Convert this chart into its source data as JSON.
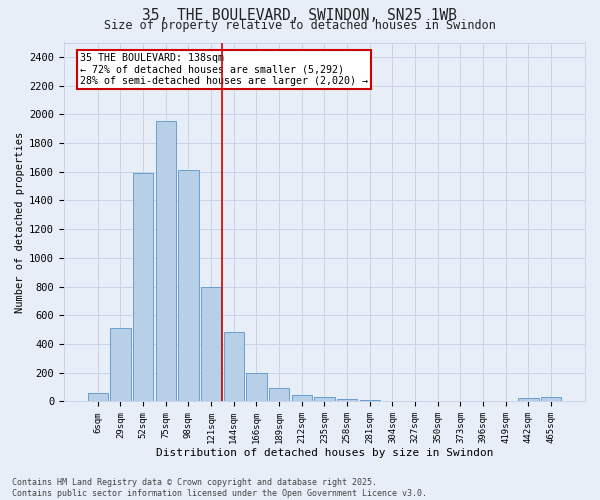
{
  "title1": "35, THE BOULEVARD, SWINDON, SN25 1WB",
  "title2": "Size of property relative to detached houses in Swindon",
  "xlabel": "Distribution of detached houses by size in Swindon",
  "ylabel": "Number of detached properties",
  "categories": [
    "6sqm",
    "29sqm",
    "52sqm",
    "75sqm",
    "98sqm",
    "121sqm",
    "144sqm",
    "166sqm",
    "189sqm",
    "212sqm",
    "235sqm",
    "258sqm",
    "281sqm",
    "304sqm",
    "327sqm",
    "350sqm",
    "373sqm",
    "396sqm",
    "419sqm",
    "442sqm",
    "465sqm"
  ],
  "values": [
    55,
    510,
    1590,
    1950,
    1610,
    800,
    480,
    200,
    95,
    45,
    30,
    15,
    10,
    0,
    0,
    0,
    0,
    0,
    0,
    20,
    30
  ],
  "bar_color": "#b8cfe8",
  "bar_edge_color": "#6a9fd0",
  "vline_x": 5.5,
  "annotation_text": "35 THE BOULEVARD: 138sqm\n← 72% of detached houses are smaller (5,292)\n28% of semi-detached houses are larger (2,020) →",
  "box_color": "#ffffff",
  "box_edge_color": "#cc0000",
  "vline_color": "#cc0000",
  "grid_color": "#c8d4e8",
  "bg_color": "#e8eef8",
  "ylim": [
    0,
    2500
  ],
  "yticks": [
    0,
    200,
    400,
    600,
    800,
    1000,
    1200,
    1400,
    1600,
    1800,
    2000,
    2200,
    2400
  ],
  "footer": "Contains HM Land Registry data © Crown copyright and database right 2025.\nContains public sector information licensed under the Open Government Licence v3.0."
}
